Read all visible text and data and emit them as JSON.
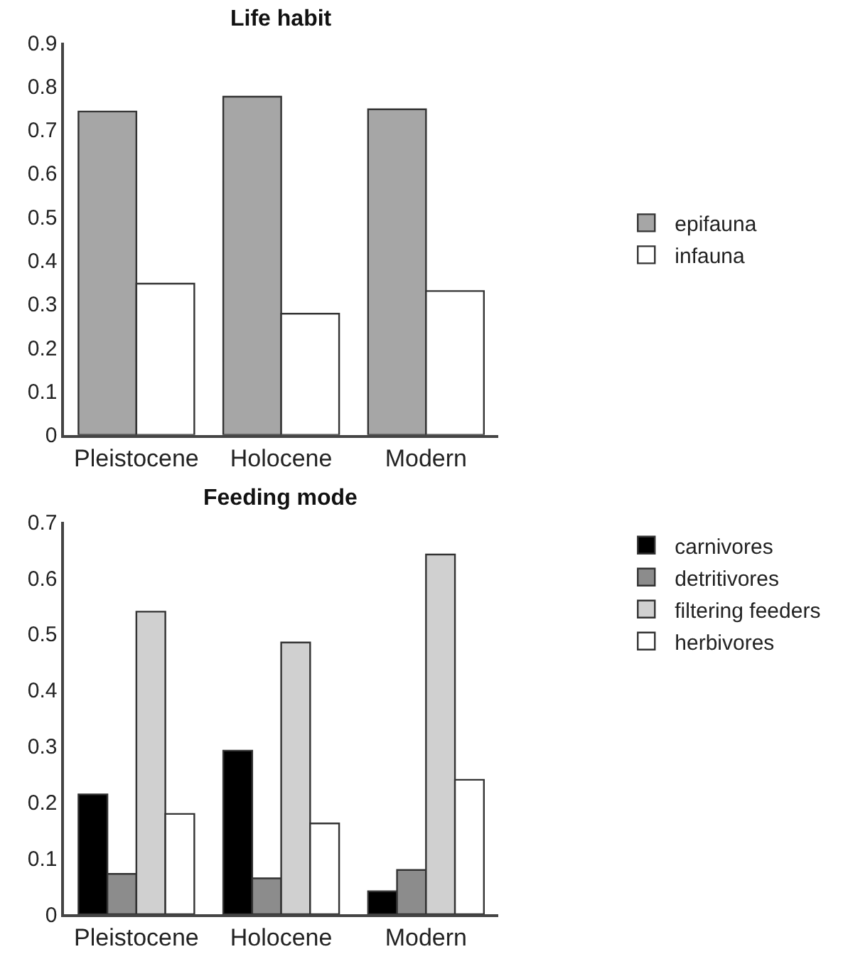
{
  "chart_data": [
    {
      "type": "bar",
      "title": "Life habit",
      "categories": [
        "Pleistocene",
        "Holocene",
        "Modern"
      ],
      "series": [
        {
          "name": "epifauna",
          "color": "#a6a6a6",
          "values": [
            0.742,
            0.776,
            0.747
          ]
        },
        {
          "name": "infauna",
          "color": "#ffffff",
          "values": [
            0.347,
            0.278,
            0.33
          ]
        }
      ],
      "ylim": [
        0,
        0.9
      ],
      "yticks": [
        0,
        0.1,
        0.2,
        0.3,
        0.4,
        0.5,
        0.6,
        0.7,
        0.8,
        0.9
      ],
      "legend": "right"
    },
    {
      "type": "bar",
      "title": "Feeding mode",
      "categories": [
        "Pleistocene",
        "Holocene",
        "Modern"
      ],
      "series": [
        {
          "name": "carnivores",
          "color": "#000000",
          "values": [
            0.214,
            0.292,
            0.041
          ]
        },
        {
          "name": "detritivores",
          "color": "#8c8c8c",
          "values": [
            0.072,
            0.064,
            0.079
          ]
        },
        {
          "name": "filtering feeders",
          "color": "#d0d0d0",
          "values": [
            0.54,
            0.485,
            0.642
          ]
        },
        {
          "name": "herbivores",
          "color": "#ffffff",
          "values": [
            0.179,
            0.162,
            0.24
          ]
        }
      ],
      "ylim": [
        0,
        0.7
      ],
      "yticks": [
        0,
        0.1,
        0.2,
        0.3,
        0.4,
        0.5,
        0.6,
        0.7
      ],
      "legend": "top right"
    }
  ]
}
